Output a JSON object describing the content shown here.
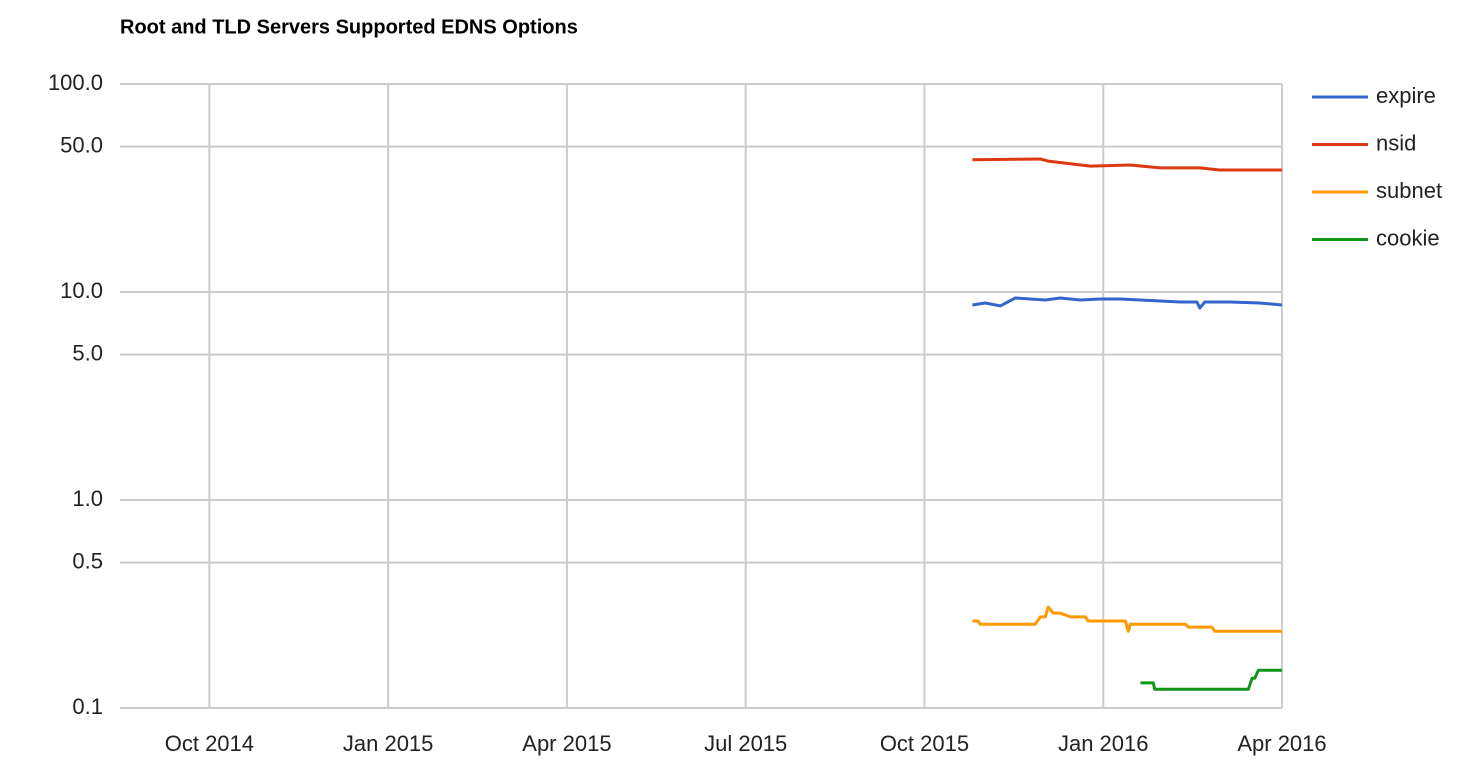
{
  "chart_data": {
    "type": "line",
    "title": "Root and TLD Servers Supported EDNS Options",
    "log_y": true,
    "grid": true,
    "legend": "right",
    "xlim": [
      2014.625,
      2016.25
    ],
    "xticks": [
      {
        "value": 2014.75,
        "label": "Oct 2014"
      },
      {
        "value": 2015.0,
        "label": "Jan 2015"
      },
      {
        "value": 2015.25,
        "label": "Apr 2015"
      },
      {
        "value": 2015.5,
        "label": "Jul 2015"
      },
      {
        "value": 2015.75,
        "label": "Oct 2015"
      },
      {
        "value": 2016.0,
        "label": "Jan 2016"
      },
      {
        "value": 2016.25,
        "label": "Apr 2016"
      }
    ],
    "ylim": [
      0.1,
      100
    ],
    "yticks": [
      {
        "value": 100,
        "label": "100.0"
      },
      {
        "value": 50,
        "label": "50.0"
      },
      {
        "value": 10,
        "label": "10.0"
      },
      {
        "value": 5,
        "label": "5.0"
      },
      {
        "value": 1,
        "label": "1.0"
      },
      {
        "value": 0.5,
        "label": "0.5"
      },
      {
        "value": 0.1,
        "label": "0.1"
      }
    ],
    "series": [
      {
        "name": "expire",
        "color": "#3366cc",
        "x": [
          2015.817,
          2015.835,
          2015.856,
          2015.877,
          2015.898,
          2015.919,
          2015.94,
          2015.968,
          2015.996,
          2016.024,
          2016.052,
          2016.08,
          2016.108,
          2016.131,
          2016.135,
          2016.142,
          2016.177,
          2016.219,
          2016.25
        ],
        "values": [
          8.66,
          8.85,
          8.57,
          9.36,
          9.25,
          9.15,
          9.36,
          9.15,
          9.25,
          9.25,
          9.15,
          9.05,
          8.95,
          8.95,
          8.38,
          8.95,
          8.95,
          8.85,
          8.66
        ]
      },
      {
        "name": "nsid",
        "color": "#dc3912",
        "x": [
          2015.817,
          2015.912,
          2015.923,
          2015.982,
          2016.038,
          2016.08,
          2016.135,
          2016.163,
          2016.25
        ],
        "values": [
          43.2,
          43.6,
          42.6,
          40.3,
          40.8,
          39.5,
          39.5,
          38.6,
          38.6
        ]
      },
      {
        "name": "subnet",
        "color": "#ff9900",
        "x": [
          2015.817,
          2015.825,
          2015.828,
          2015.905,
          2015.912,
          2015.919,
          2015.923,
          2015.93,
          2015.94,
          2015.954,
          2015.975,
          2015.979,
          2016.031,
          2016.035,
          2016.038,
          2016.115,
          2016.119,
          2016.152,
          2016.156,
          2016.25
        ],
        "values": [
          0.262,
          0.262,
          0.253,
          0.253,
          0.274,
          0.274,
          0.306,
          0.286,
          0.286,
          0.274,
          0.274,
          0.262,
          0.262,
          0.234,
          0.253,
          0.253,
          0.245,
          0.245,
          0.234,
          0.234
        ]
      },
      {
        "name": "cookie",
        "color": "#109618",
        "x": [
          2016.052,
          2016.07,
          2016.072,
          2016.203,
          2016.208,
          2016.212,
          2016.217,
          2016.25
        ],
        "values": [
          0.132,
          0.132,
          0.123,
          0.123,
          0.139,
          0.139,
          0.152,
          0.152
        ]
      }
    ]
  }
}
